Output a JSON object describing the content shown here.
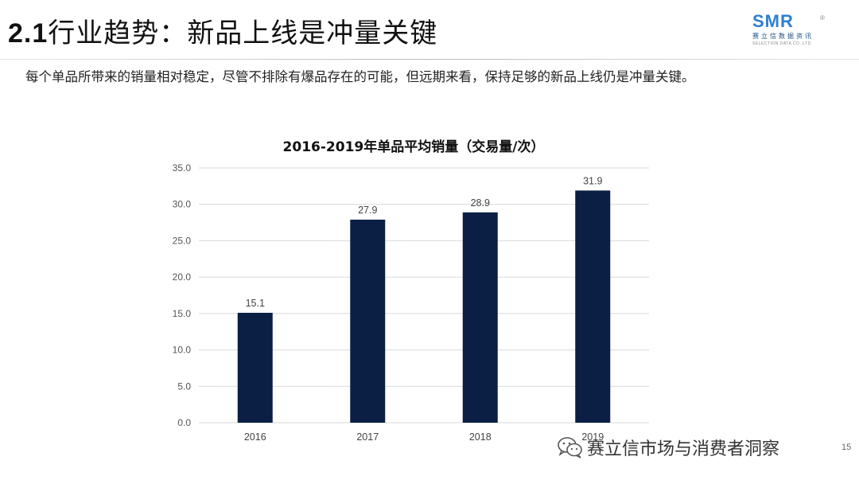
{
  "slide": {
    "title_num": "2.1",
    "title_text": "行业趋势：新品上线是冲量关键",
    "lead": "每个单品所带来的销量相对稳定，尽管不排除有爆品存在的可能，但远期来看，保持足够的新品上线仍是冲量关键。",
    "page_number": "15"
  },
  "logo": {
    "mark": "SMR",
    "reg": "®",
    "cn": "赛立信数据资讯",
    "en": "SELECTION DATA CO.,LTD."
  },
  "watermark": {
    "text": "赛立信市场与消费者洞察"
  },
  "chart_data": {
    "type": "bar",
    "title": "2016-2019年单品平均销量（交易量/次）",
    "categories": [
      "2016",
      "2017",
      "2018",
      "2019"
    ],
    "values": [
      15.1,
      27.9,
      28.9,
      31.9
    ],
    "ylim": [
      0,
      35
    ],
    "yticks": [
      "0.0",
      "5.0",
      "10.0",
      "15.0",
      "20.0",
      "25.0",
      "30.0",
      "35.0"
    ],
    "data_labels": [
      "15.1",
      "27.9",
      "28.9",
      "31.9"
    ],
    "bar_color": "#0b1f45",
    "grid": true,
    "legend": "none"
  }
}
